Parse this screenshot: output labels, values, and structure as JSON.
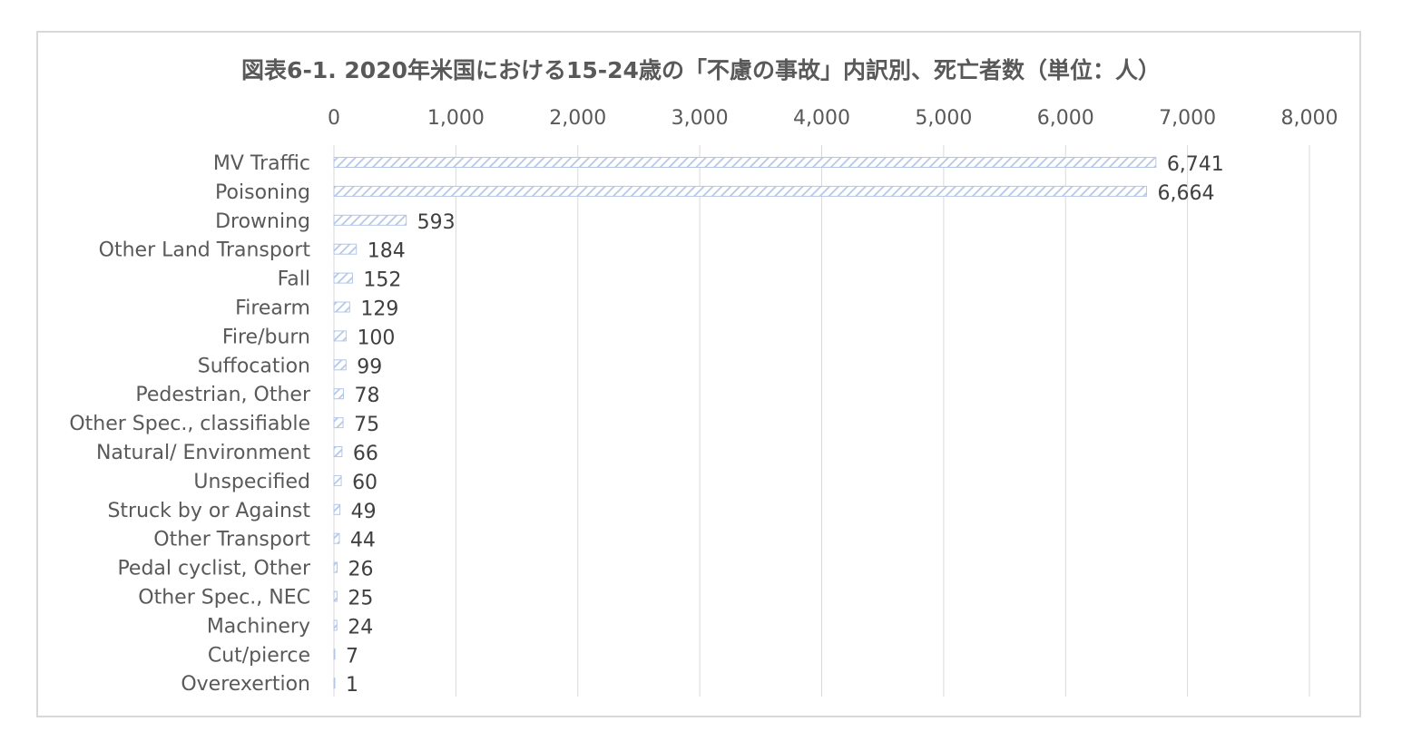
{
  "chart_data": {
    "type": "bar",
    "orientation": "horizontal",
    "title": "図表6-1.  2020年米国における15-24歳の「不慮の事故」内訳別、死亡者数（単位：人）",
    "categories": [
      "MV Traffic",
      "Poisoning",
      "Drowning",
      "Other Land Transport",
      "Fall",
      "Firearm",
      "Fire/burn",
      "Suffocation",
      "Pedestrian, Other",
      "Other Spec., classifiable",
      "Natural/ Environment",
      "Unspecified",
      "Struck by or Against",
      "Other Transport",
      "Pedal cyclist, Other",
      "Other Spec., NEC",
      "Machinery",
      "Cut/pierce",
      "Overexertion"
    ],
    "values": [
      6741,
      6664,
      593,
      184,
      152,
      129,
      100,
      99,
      78,
      75,
      66,
      60,
      49,
      44,
      26,
      25,
      24,
      7,
      1
    ],
    "value_labels": [
      "6,741",
      "6,664",
      "593",
      "184",
      "152",
      "129",
      "100",
      "99",
      "78",
      "75",
      "66",
      "60",
      "49",
      "44",
      "26",
      "25",
      "24",
      "7",
      "1"
    ],
    "xlim": [
      0,
      8000
    ],
    "x_ticks": [
      "0",
      "1,000",
      "2,000",
      "3,000",
      "4,000",
      "5,000",
      "6,000",
      "7,000",
      "8,000"
    ],
    "axis_position": "top",
    "grid": true,
    "legend": "none",
    "bar_fill": "diagonal-hatch",
    "colors": {
      "bar": "#b4c7e7",
      "grid": "#d9d9d9",
      "text": "#595959"
    }
  }
}
